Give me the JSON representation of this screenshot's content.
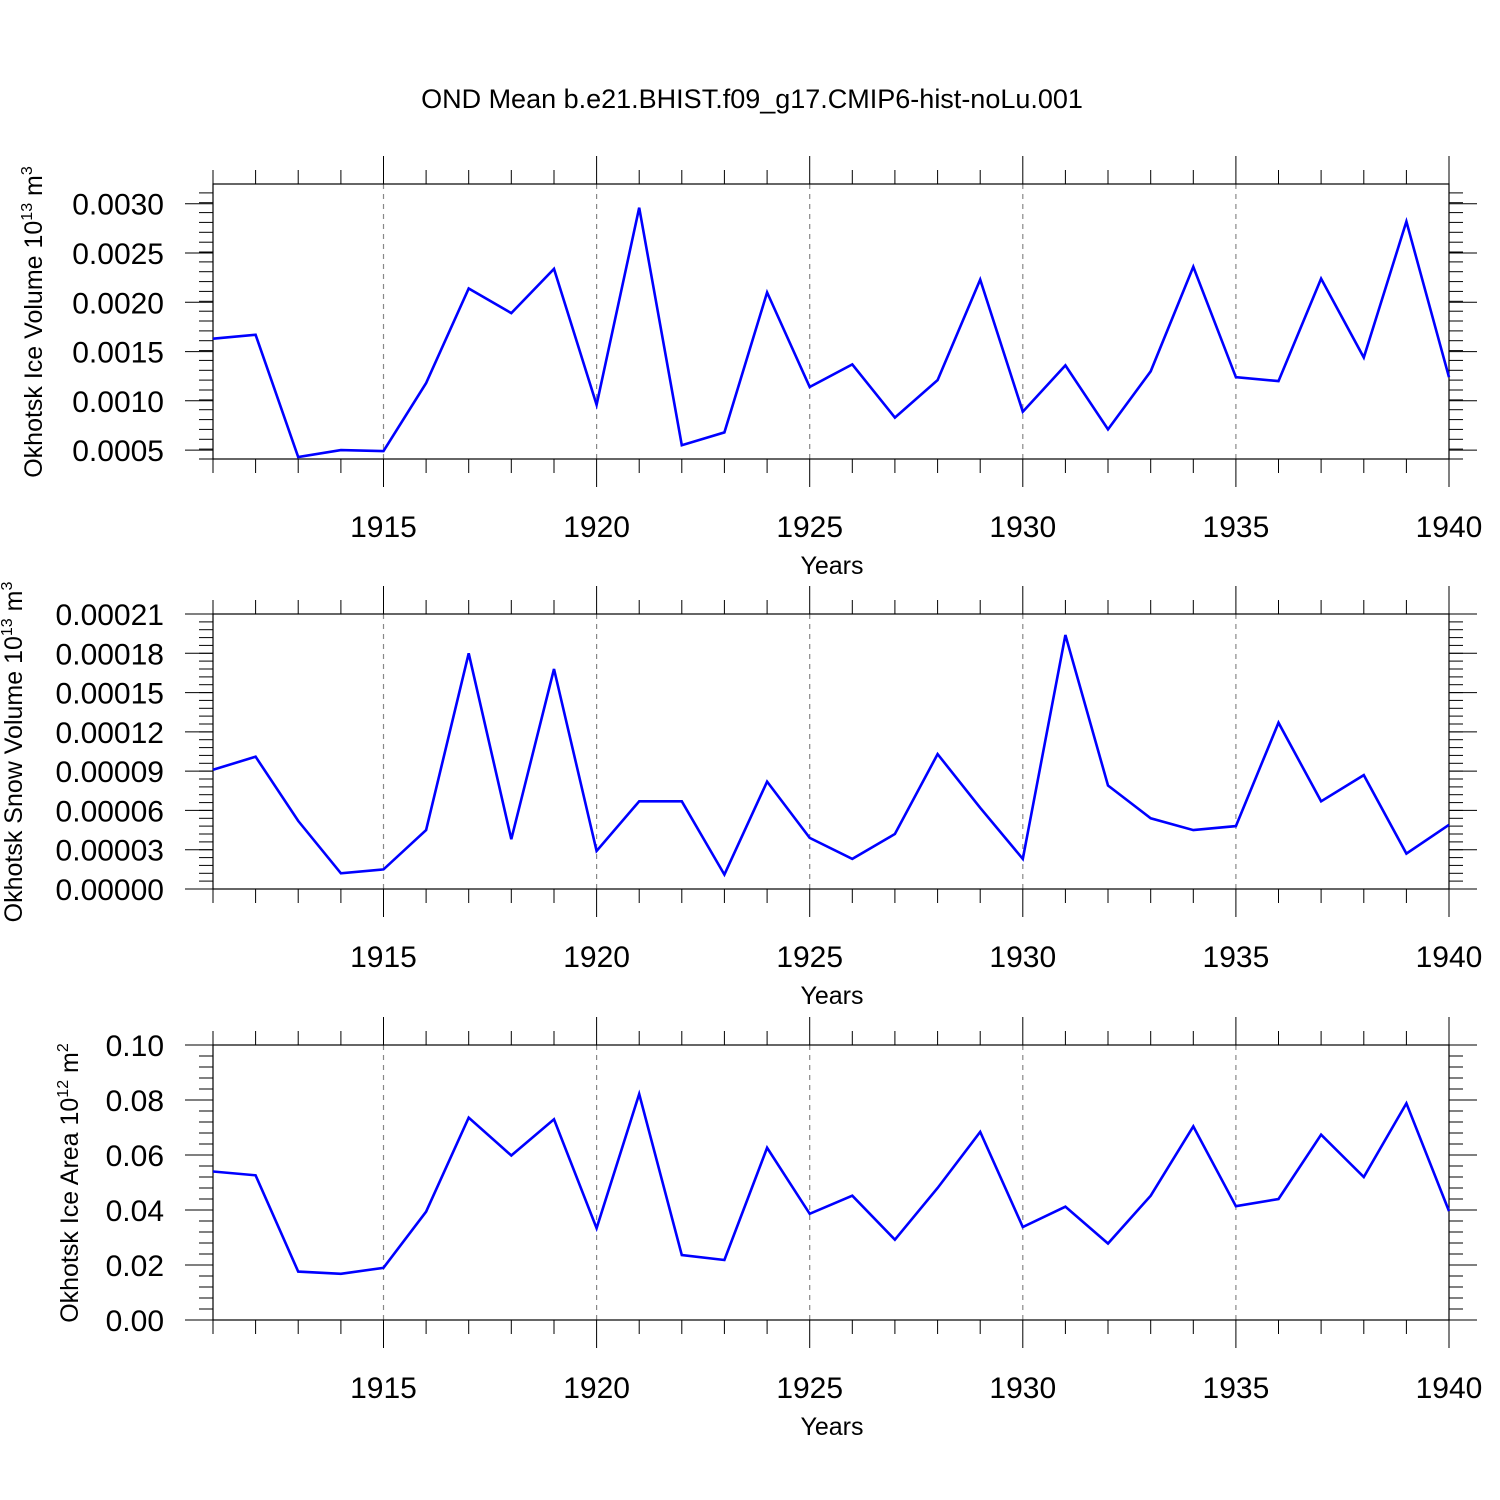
{
  "title": "OND Mean b.e21.BHIST.f09_g17.CMIP6-hist-noLu.001",
  "colors": {
    "series": "#0000ff",
    "grid": "#888888",
    "axis": "#000000"
  },
  "chart_data": [
    {
      "type": "line",
      "ylabel_main": "Okhotsk Ice Volume 10",
      "ylabel_exp": "13",
      "ylabel_unit": " m",
      "ylabel_unit_exp": "3",
      "xlabel": "Years",
      "xlim": [
        1911,
        1940
      ],
      "ylim": [
        0.00041,
        0.0032
      ],
      "yticks": [
        0.0005,
        0.001,
        0.0015,
        0.002,
        0.0025,
        0.003
      ],
      "ytick_labels": [
        "0.0005",
        "0.0010",
        "0.0015",
        "0.0020",
        "0.0025",
        "0.0030"
      ],
      "xticks": [
        1915,
        1920,
        1925,
        1930,
        1935,
        1940
      ],
      "xtick_labels": [
        "1915",
        "1920",
        "1925",
        "1930",
        "1935",
        "1940"
      ],
      "grid": "vertical dashed at labeled years",
      "x": [
        1911,
        1912,
        1913,
        1914,
        1915,
        1916,
        1917,
        1918,
        1919,
        1920,
        1921,
        1922,
        1923,
        1924,
        1925,
        1926,
        1927,
        1928,
        1929,
        1930,
        1931,
        1932,
        1933,
        1934,
        1935,
        1936,
        1937,
        1938,
        1939,
        1940
      ],
      "values": [
        0.00163,
        0.00167,
        0.00043,
        0.0005,
        0.00049,
        0.00118,
        0.00214,
        0.00189,
        0.00234,
        0.00096,
        0.00296,
        0.00055,
        0.00068,
        0.0021,
        0.00114,
        0.00137,
        0.00083,
        0.00121,
        0.00223,
        0.00089,
        0.00136,
        0.00071,
        0.0013,
        0.00236,
        0.00124,
        0.0012,
        0.00224,
        0.00144,
        0.00282,
        0.00124
      ]
    },
    {
      "type": "line",
      "ylabel_main": "Okhotsk Snow Volume 10",
      "ylabel_exp": "13",
      "ylabel_unit": " m",
      "ylabel_unit_exp": "3",
      "xlabel": "Years",
      "xlim": [
        1911,
        1940
      ],
      "ylim": [
        0.0,
        0.00021
      ],
      "yticks": [
        0.0,
        3e-05,
        6e-05,
        9e-05,
        0.00012,
        0.00015,
        0.00018,
        0.00021
      ],
      "ytick_labels": [
        "0.00000",
        "0.00003",
        "0.00006",
        "0.00009",
        "0.00012",
        "0.00015",
        "0.00018",
        "0.00021"
      ],
      "xticks": [
        1915,
        1920,
        1925,
        1930,
        1935,
        1940
      ],
      "xtick_labels": [
        "1915",
        "1920",
        "1925",
        "1930",
        "1935",
        "1940"
      ],
      "grid": "vertical dashed at labeled years",
      "x": [
        1911,
        1912,
        1913,
        1914,
        1915,
        1916,
        1917,
        1918,
        1919,
        1920,
        1921,
        1922,
        1923,
        1924,
        1925,
        1926,
        1927,
        1928,
        1929,
        1930,
        1931,
        1932,
        1933,
        1934,
        1935,
        1936,
        1937,
        1938,
        1939,
        1940
      ],
      "values": [
        9.1e-05,
        0.000101,
        5.2e-05,
        1.2e-05,
        1.5e-05,
        4.5e-05,
        0.00018,
        3.8e-05,
        0.000168,
        2.9e-05,
        6.7e-05,
        6.7e-05,
        1.1e-05,
        8.2e-05,
        3.9e-05,
        2.3e-05,
        4.2e-05,
        0.000103,
        6.2e-05,
        2.3e-05,
        0.000194,
        7.9e-05,
        5.4e-05,
        4.5e-05,
        4.8e-05,
        0.000127,
        6.7e-05,
        8.7e-05,
        2.7e-05,
        4.9e-05
      ]
    },
    {
      "type": "line",
      "ylabel_main": "Okhotsk Ice Area 10",
      "ylabel_exp": "12",
      "ylabel_unit": " m",
      "ylabel_unit_exp": "2",
      "xlabel": "Years",
      "xlim": [
        1911,
        1940
      ],
      "ylim": [
        0.0,
        0.1
      ],
      "yticks": [
        0.0,
        0.02,
        0.04,
        0.06,
        0.08,
        0.1
      ],
      "ytick_labels": [
        "0.00",
        "0.02",
        "0.04",
        "0.06",
        "0.08",
        "0.10"
      ],
      "xticks": [
        1915,
        1920,
        1925,
        1930,
        1935,
        1940
      ],
      "xtick_labels": [
        "1915",
        "1920",
        "1925",
        "1930",
        "1935",
        "1940"
      ],
      "grid": "vertical dashed at labeled years",
      "x": [
        1911,
        1912,
        1913,
        1914,
        1915,
        1916,
        1917,
        1918,
        1919,
        1920,
        1921,
        1922,
        1923,
        1924,
        1925,
        1926,
        1927,
        1928,
        1929,
        1930,
        1931,
        1932,
        1933,
        1934,
        1935,
        1936,
        1937,
        1938,
        1939,
        1940
      ],
      "values": [
        0.054,
        0.0526,
        0.0176,
        0.0168,
        0.019,
        0.0394,
        0.0736,
        0.0598,
        0.073,
        0.0334,
        0.0822,
        0.0236,
        0.0218,
        0.0626,
        0.0386,
        0.0452,
        0.0292,
        0.048,
        0.0684,
        0.0338,
        0.0412,
        0.0278,
        0.0452,
        0.0704,
        0.0414,
        0.044,
        0.0674,
        0.052,
        0.0788,
        0.0396
      ]
    }
  ]
}
